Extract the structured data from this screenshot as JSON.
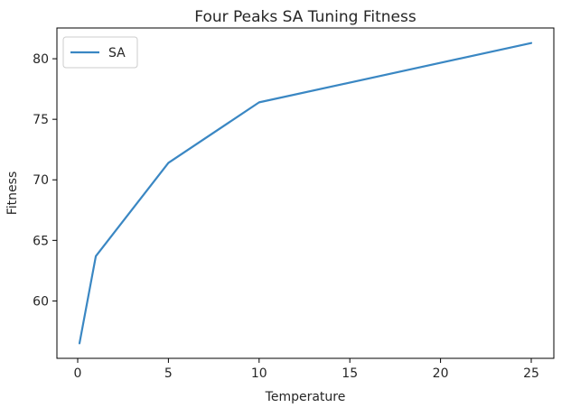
{
  "chart_data": {
    "type": "line",
    "title": "Four Peaks SA Tuning Fitness",
    "xlabel": "Temperature",
    "ylabel": "Fitness",
    "x": [
      0.1,
      1,
      5,
      10,
      25
    ],
    "series": [
      {
        "name": "SA",
        "values": [
          56.5,
          63.7,
          71.4,
          76.4,
          81.3
        ],
        "color": "#3a87c3"
      }
    ],
    "xlim": [
      -1.145,
      26.245
    ],
    "ylim": [
      55.26,
      82.54
    ],
    "xticks": [
      0,
      5,
      10,
      15,
      20,
      25
    ],
    "xtick_labels": [
      "0",
      "5",
      "10",
      "15",
      "20",
      "25"
    ],
    "yticks": [
      60,
      65,
      70,
      75,
      80
    ],
    "ytick_labels": [
      "60",
      "65",
      "70",
      "75",
      "80"
    ],
    "grid": false,
    "legend_position": "upper-left"
  }
}
